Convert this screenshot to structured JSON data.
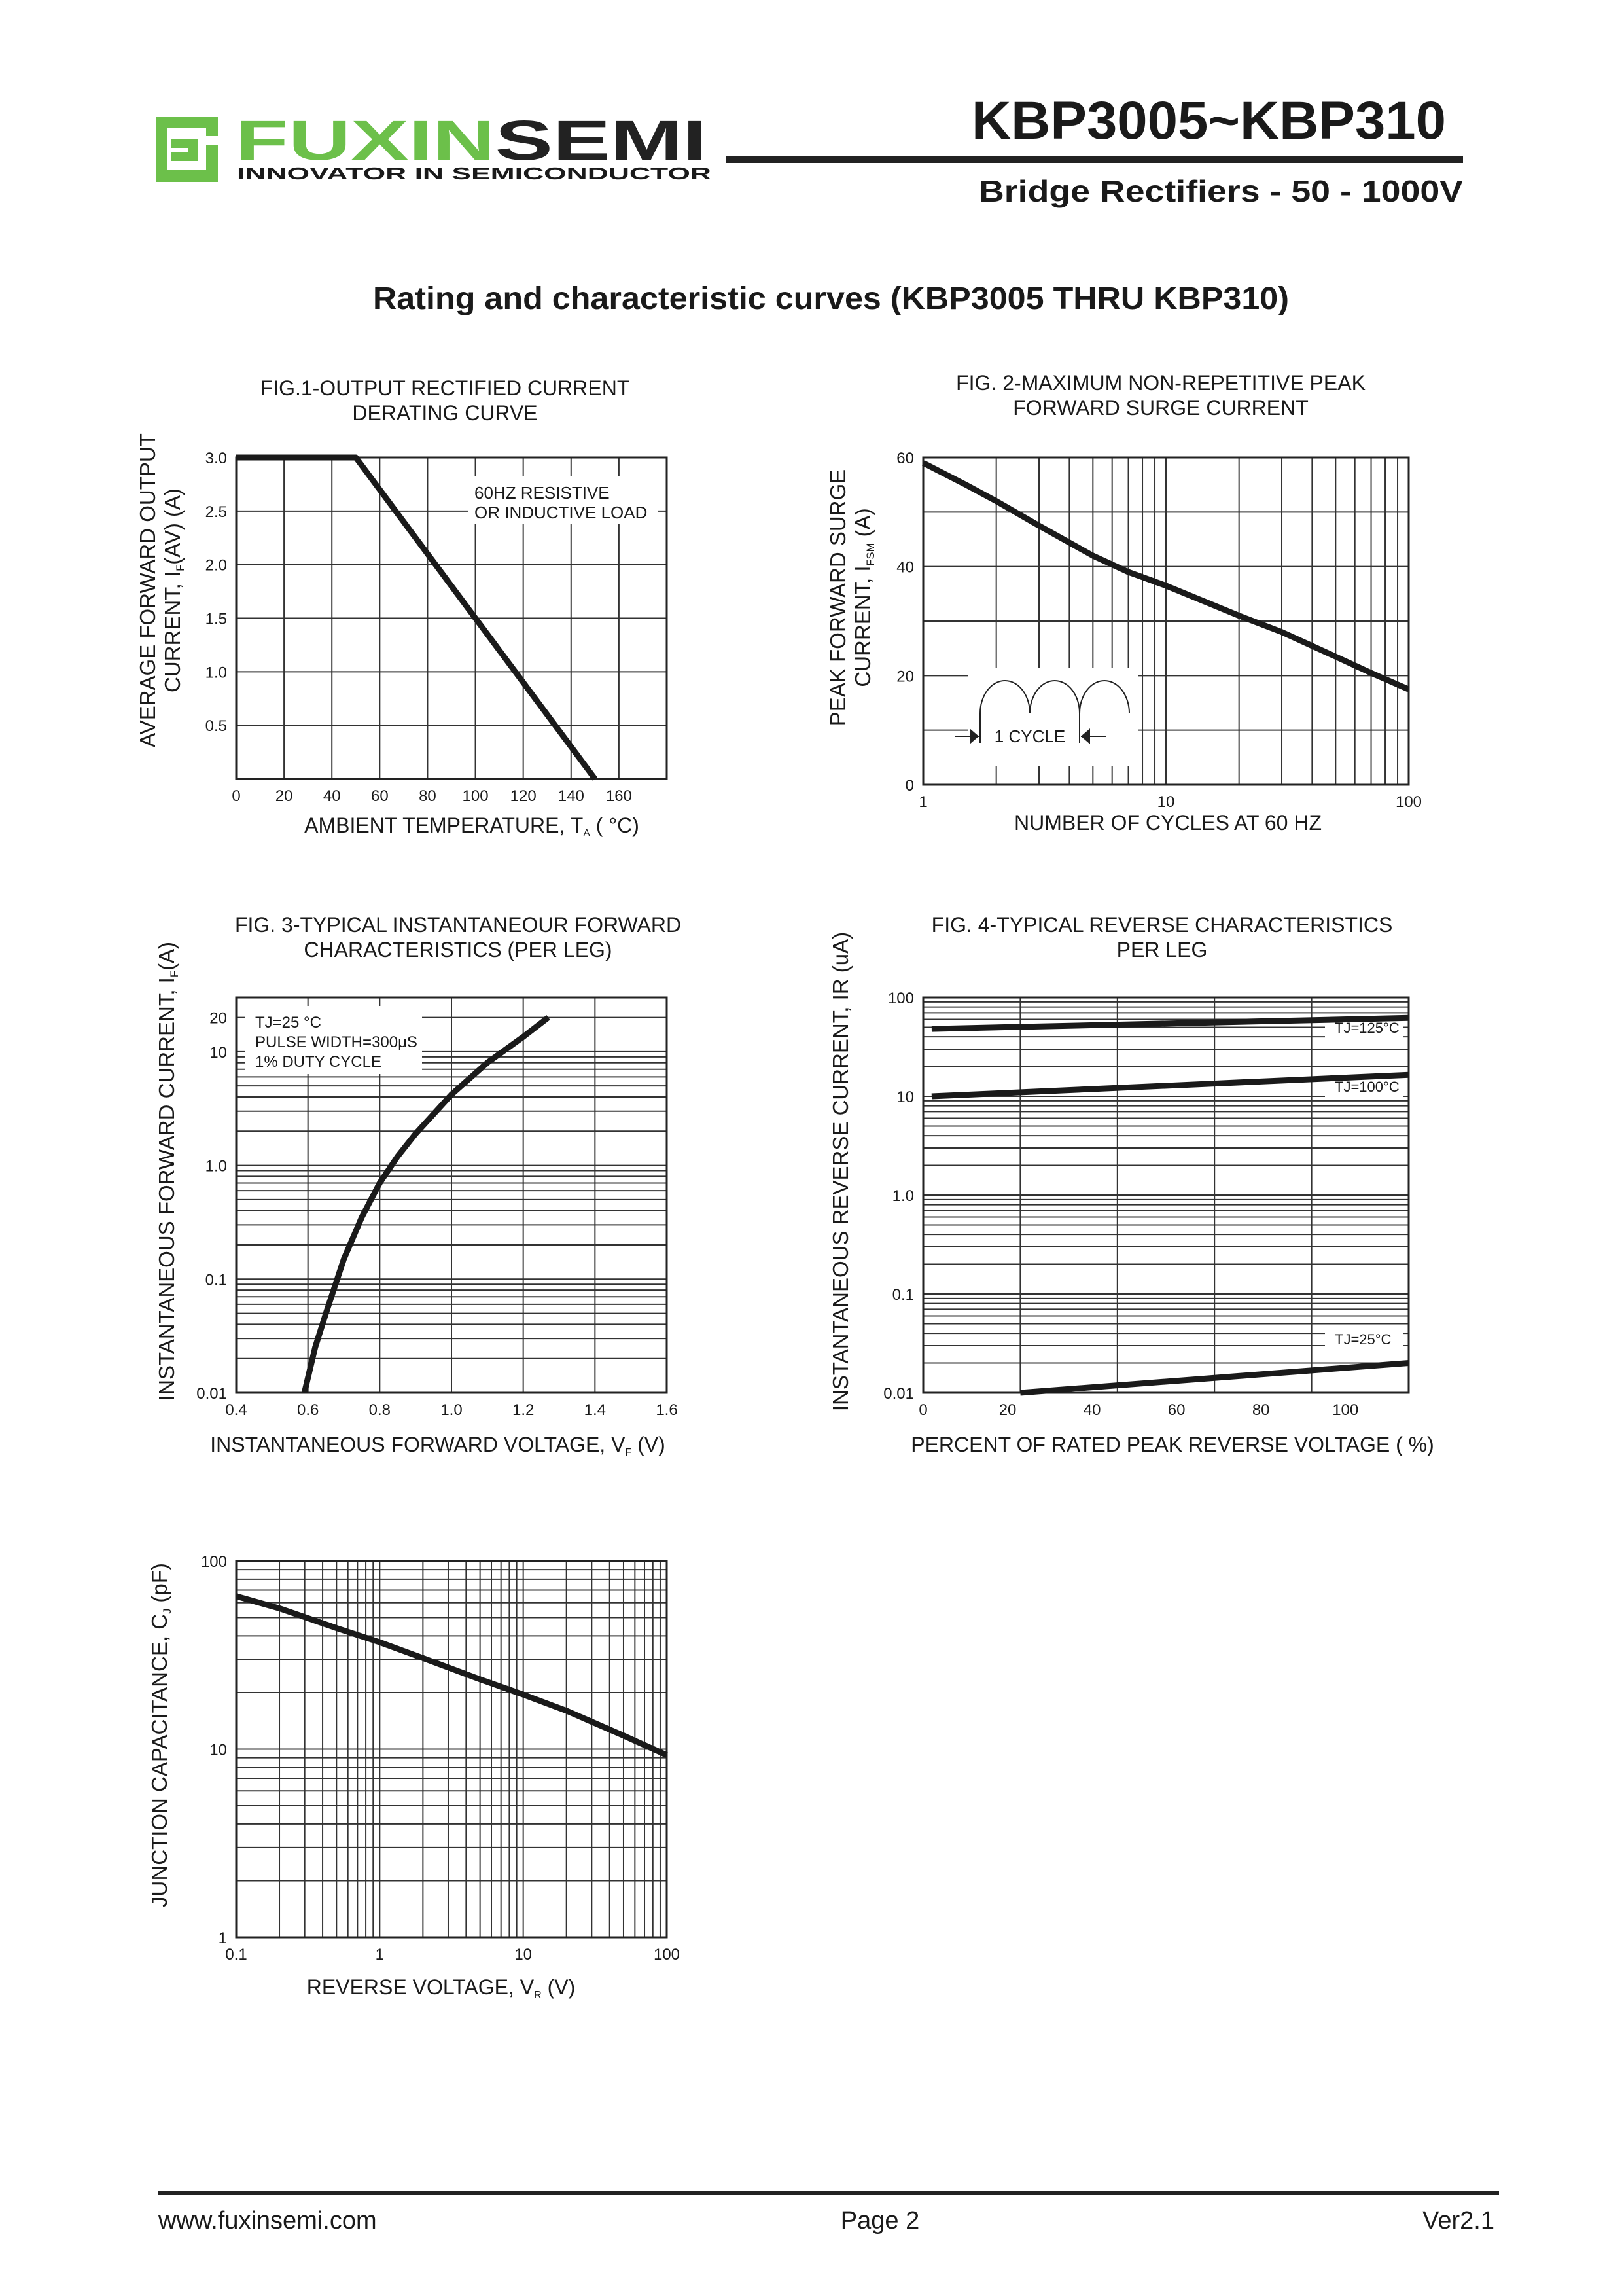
{
  "header": {
    "logo_text_green": "FUXIN",
    "logo_text_dark": "SEMI",
    "logo_tagline": "INNOVATOR IN SEMICONDUCTOR",
    "part_number": "KBP3005~KBP310",
    "subtitle": "Bridge Rectifiers - 50 - 1000V",
    "brand_color": "#6cc04a"
  },
  "page_heading": "Rating and characteristic curves (KBP3005 THRU KBP310)",
  "footer": {
    "website": "www.fuxinsemi.com",
    "page": "Page 2",
    "version": "Ver2.1"
  },
  "chart_data": [
    {
      "type": "line",
      "title": [
        "FIG.1-OUTPUT RECTIFIED CURRENT",
        "DERATING CURVE"
      ],
      "xlabel": {
        "pre": "AMBIENT TEMPERATURE, T",
        "sub": "A",
        "post": " ( °C)"
      },
      "ylabel": [
        {
          "pre": "AVERAGE FORWARD OUTPUT",
          "sub": "",
          "post": ""
        },
        {
          "pre": "CURRENT, I",
          "sub": "F",
          "post": "(AV) (A)"
        }
      ],
      "xscale": "linear",
      "yscale": "linear",
      "xlim": [
        0,
        180
      ],
      "ylim": [
        0,
        3.0
      ],
      "xticks": {
        "values": [
          0,
          20,
          40,
          60,
          80,
          100,
          120,
          140,
          160
        ],
        "labels": [
          "0",
          "20",
          "40",
          "60",
          "80",
          "100",
          "120",
          "140",
          "160"
        ]
      },
      "yticks": {
        "values": [
          0.5,
          1.0,
          1.5,
          2.0,
          2.5,
          3.0
        ],
        "labels": [
          "0.5",
          "1.0",
          "1.5",
          "2.0",
          "2.5",
          "3.0"
        ]
      },
      "grid": true,
      "annotations": [
        "60HZ RESISTIVE",
        "OR INDUCTIVE LOAD"
      ],
      "series": [
        {
          "name": "derating",
          "x": [
            0,
            50,
            150
          ],
          "y": [
            3.0,
            3.0,
            0
          ]
        }
      ]
    },
    {
      "type": "line",
      "title": [
        "FIG. 2-MAXIMUM NON-REPETITIVE PEAK",
        "FORWARD SURGE CURRENT"
      ],
      "xlabel": {
        "pre": "NUMBER OF CYCLES AT 60 HZ",
        "sub": "",
        "post": ""
      },
      "ylabel": [
        {
          "pre": "PEAK FORWARD SURGE",
          "sub": "",
          "post": ""
        },
        {
          "pre": "CURRENT, I",
          "sub": "FSM",
          "post": " (A)"
        }
      ],
      "xscale": "log",
      "yscale": "linear",
      "xlim": [
        1,
        100
      ],
      "ylim": [
        0,
        60
      ],
      "xticks": {
        "values": [
          1,
          10,
          100
        ],
        "labels": [
          "1",
          "10",
          "100"
        ]
      },
      "yticks": {
        "values": [
          0,
          20,
          40,
          60
        ],
        "labels": [
          "0",
          "20",
          "40",
          "60"
        ]
      },
      "grid": true,
      "annotations": [
        "1 CYCLE"
      ],
      "series": [
        {
          "name": "surge",
          "x": [
            1,
            1.5,
            2,
            3,
            5,
            7,
            10,
            20,
            30,
            50,
            70,
            100
          ],
          "y": [
            59,
            55,
            52,
            47.5,
            42,
            39,
            36.5,
            31,
            28,
            23.5,
            20.5,
            17.5
          ]
        }
      ]
    },
    {
      "type": "line",
      "title": [
        "FIG. 3-TYPICAL INSTANTANEOUR FORWARD",
        "CHARACTERISTICS (PER LEG)"
      ],
      "xlabel": {
        "pre": "INSTANTANEOUS FORWARD VOLTAGE, V",
        "sub": "F",
        "post": " (V)"
      },
      "ylabel": [
        {
          "pre": "INSTANTANEOUS FORWARD CURRENT, I",
          "sub": "F",
          "post": "(A)"
        }
      ],
      "xscale": "linear",
      "yscale": "log",
      "xlim": [
        0.4,
        1.6
      ],
      "ylim": [
        0.01,
        30
      ],
      "xticks": {
        "values": [
          0.4,
          0.6,
          0.8,
          1.0,
          1.2,
          1.4,
          1.6
        ],
        "labels": [
          "0.4",
          "0.6",
          "0.8",
          "1.0",
          "1.2",
          "1.4",
          "1.6"
        ]
      },
      "yticks": {
        "values": [
          0.01,
          0.1,
          1.0,
          10,
          20
        ],
        "labels": [
          "0.01",
          "0.1",
          "1.0",
          "10",
          "20"
        ]
      },
      "grid": true,
      "annotations": [
        "TJ=25 °C",
        "PULSE WIDTH=300μS",
        "1% DUTY CYCLE"
      ],
      "series": [
        {
          "name": "vf",
          "x": [
            0.59,
            0.62,
            0.65,
            0.7,
            0.75,
            0.8,
            0.85,
            0.9,
            1.0,
            1.1,
            1.2,
            1.27
          ],
          "y": [
            0.01,
            0.025,
            0.05,
            0.15,
            0.35,
            0.7,
            1.2,
            1.9,
            4.2,
            8,
            13.5,
            20
          ]
        }
      ]
    },
    {
      "type": "line",
      "title": [
        "FIG. 4-TYPICAL REVERSE CHARACTERISTICS",
        "PER LEG"
      ],
      "xlabel": {
        "pre": "PERCENT OF RATED PEAK REVERSE VOLTAGE ( %)",
        "sub": "",
        "post": ""
      },
      "ylabel": [
        {
          "pre": "INSTANTANEOUS REVERSE CURRENT, IR (uA)",
          "sub": "",
          "post": ""
        }
      ],
      "xscale": "linear",
      "yscale": "log",
      "xlim": [
        0,
        115
      ],
      "ylim": [
        0.01,
        100
      ],
      "xticks": {
        "values": [
          0,
          20,
          40,
          60,
          80,
          100
        ],
        "labels": [
          "0",
          "20",
          "40",
          "60",
          "80",
          "100"
        ]
      },
      "yticks": {
        "values": [
          0.01,
          0.1,
          1.0,
          10,
          100
        ],
        "labels": [
          "0.01",
          "0.1",
          "1.0",
          "10",
          "100"
        ]
      },
      "grid": true,
      "series": [
        {
          "name": "TJ=125°C",
          "x": [
            2,
            115
          ],
          "y": [
            48,
            62
          ]
        },
        {
          "name": "TJ=100°C",
          "x": [
            2,
            115
          ],
          "y": [
            10,
            16.5
          ]
        },
        {
          "name": "TJ=25°C",
          "x": [
            23,
            115
          ],
          "y": [
            0.01,
            0.02
          ]
        }
      ]
    },
    {
      "type": "line",
      "title": [],
      "xlabel": {
        "pre": "REVERSE VOLTAGE, V",
        "sub": "R",
        "post": " (V)"
      },
      "ylabel": [
        {
          "pre": "JUNCTION CAPACITANCE, C",
          "sub": "J",
          "post": " (pF)"
        }
      ],
      "xscale": "log",
      "yscale": "log",
      "xlim": [
        0.1,
        100
      ],
      "ylim": [
        1,
        100
      ],
      "xticks": {
        "values": [
          0.1,
          1,
          10,
          100
        ],
        "labels": [
          "0.1",
          "1",
          "10",
          "100"
        ]
      },
      "yticks": {
        "values": [
          1,
          10,
          100
        ],
        "labels": [
          "1",
          "10",
          "100"
        ]
      },
      "grid": true,
      "series": [
        {
          "name": "cj",
          "x": [
            0.1,
            0.2,
            0.5,
            1,
            2,
            5,
            10,
            20,
            50,
            100
          ],
          "y": [
            65,
            56,
            44,
            37,
            30.5,
            23.5,
            19.5,
            16,
            11.8,
            9.3
          ]
        }
      ]
    }
  ]
}
